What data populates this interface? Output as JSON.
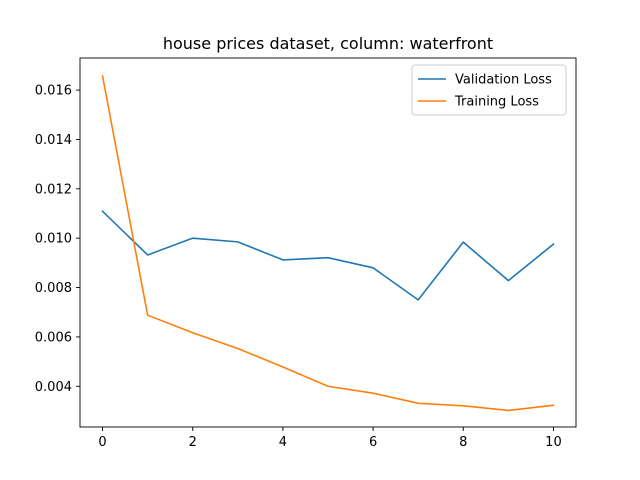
{
  "chart_data": {
    "type": "line",
    "title": "house prices dataset, column: waterfront",
    "xlabel": "",
    "ylabel": "",
    "x": [
      0,
      1,
      2,
      3,
      4,
      5,
      6,
      7,
      8,
      9,
      10
    ],
    "xlim": [
      -0.5,
      10.5
    ],
    "ylim": [
      0.00235,
      0.0173
    ],
    "xticks": [
      0,
      2,
      4,
      6,
      8,
      10
    ],
    "yticks": [
      0.004,
      0.006,
      0.008,
      0.01,
      0.012,
      0.014,
      0.016
    ],
    "ytick_labels": [
      "0.004",
      "0.006",
      "0.008",
      "0.010",
      "0.012",
      "0.014",
      "0.016"
    ],
    "grid": false,
    "legend_position": "top-right",
    "series": [
      {
        "name": "Validation Loss",
        "color": "#1f77b4",
        "values": [
          0.01109,
          0.00932,
          0.01,
          0.00985,
          0.00912,
          0.00921,
          0.0088,
          0.0075,
          0.00984,
          0.00828,
          0.00976
        ]
      },
      {
        "name": "Training Loss",
        "color": "#ff7f0e",
        "values": [
          0.01657,
          0.00688,
          0.00617,
          0.00553,
          0.00478,
          0.004,
          0.00372,
          0.00331,
          0.00321,
          0.00302,
          0.00323
        ]
      }
    ]
  }
}
